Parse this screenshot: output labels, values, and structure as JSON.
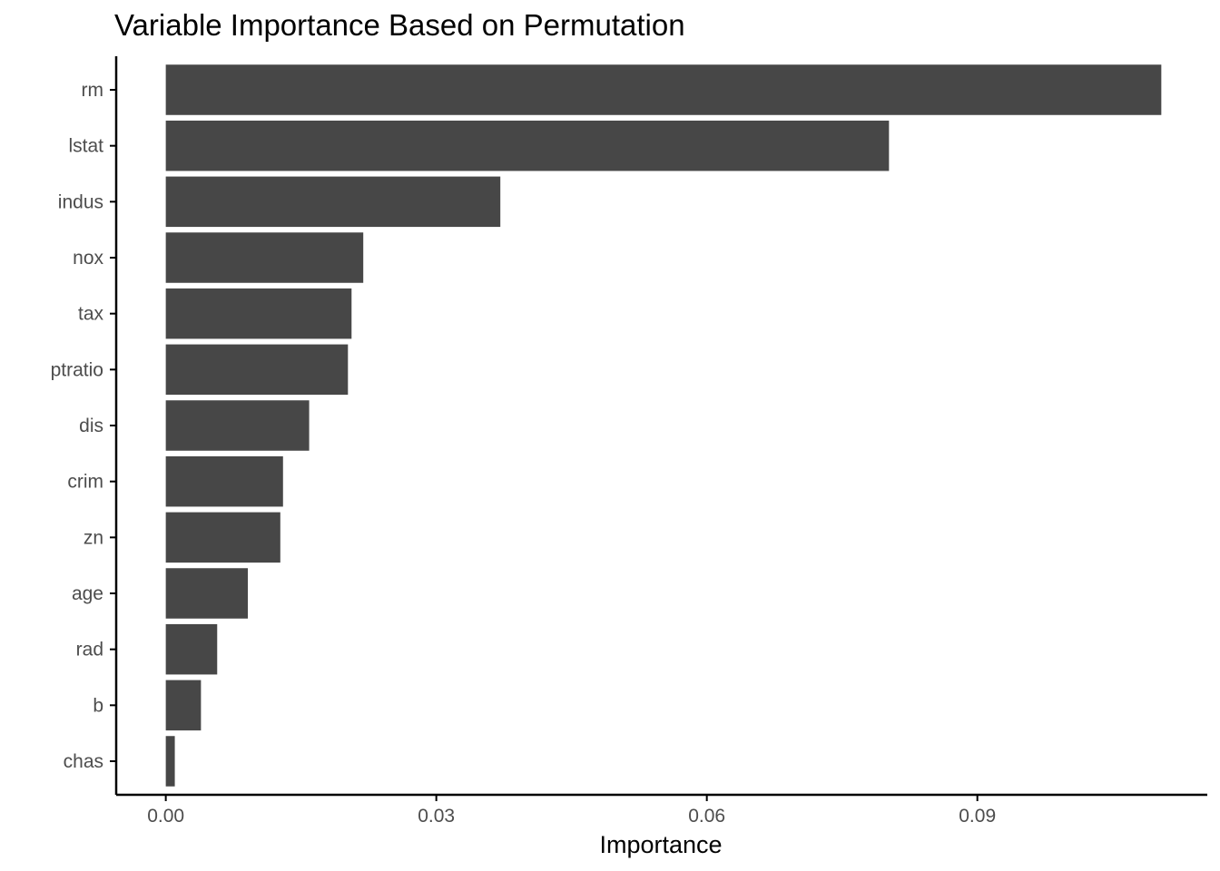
{
  "chart_data": {
    "type": "bar",
    "orientation": "horizontal",
    "title": "Variable Importance Based on Permutation",
    "xlabel": "Importance",
    "ylabel": "",
    "categories": [
      "rm",
      "lstat",
      "indus",
      "nox",
      "tax",
      "ptratio",
      "dis",
      "crim",
      "zn",
      "age",
      "rad",
      "b",
      "chas"
    ],
    "values": [
      0.1104,
      0.0802,
      0.0371,
      0.0219,
      0.0206,
      0.0202,
      0.0159,
      0.013,
      0.0127,
      0.0091,
      0.0057,
      0.0039,
      0.001
    ],
    "xlim": [
      -0.0055,
      0.1155
    ],
    "xticks": [
      0.0,
      0.03,
      0.06,
      0.09
    ],
    "xtick_labels": [
      "0.00",
      "0.03",
      "0.06",
      "0.09"
    ],
    "grid": false,
    "legend": "none",
    "colors": {
      "bar": "#474747",
      "axis": "#000000",
      "tick_text": "#4d4d4d",
      "background": "#ffffff"
    }
  }
}
